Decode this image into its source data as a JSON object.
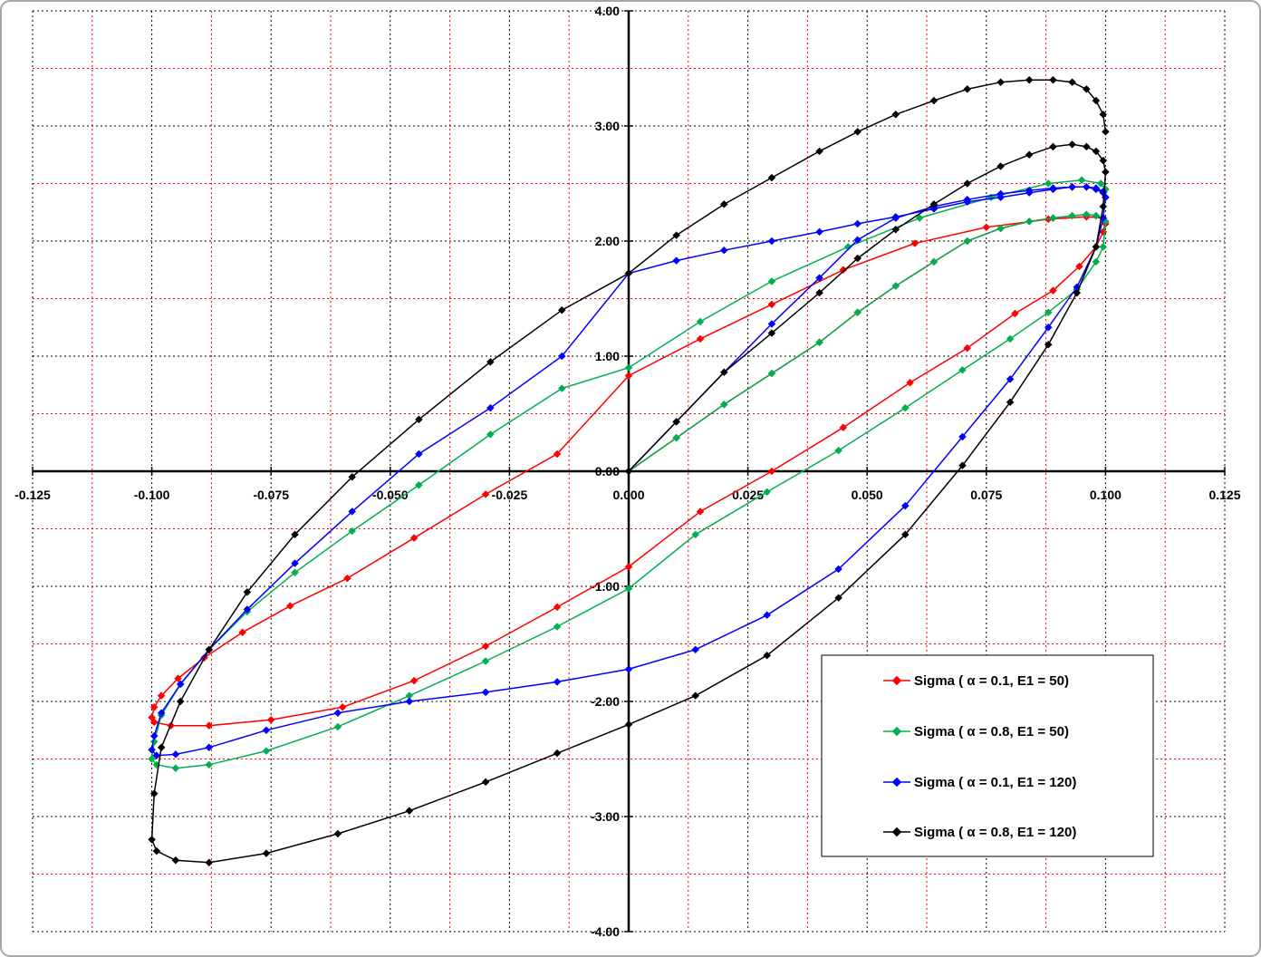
{
  "chart_data": {
    "type": "scatter",
    "title": "",
    "xlabel": "",
    "ylabel": "",
    "xlim": [
      -0.125,
      0.125
    ],
    "ylim": [
      -4.0,
      4.0
    ],
    "x_ticks": [
      -0.125,
      -0.1,
      -0.075,
      -0.05,
      -0.025,
      0.0,
      0.025,
      0.05,
      0.075,
      0.1,
      0.125
    ],
    "x_tick_labels": [
      "-0.125",
      "-0.100",
      "-0.075",
      "-0.050",
      "-0.025",
      "0.000",
      "0.025",
      "0.050",
      "0.075",
      "0.100",
      "0.125"
    ],
    "y_ticks": [
      -4,
      -3,
      -2,
      -1,
      0,
      1,
      2,
      3,
      4
    ],
    "y_tick_labels": [
      "-4.00",
      "-3.00",
      "-2.00",
      "-1.00",
      "0.00",
      "1.00",
      "2.00",
      "3.00",
      "4.00"
    ],
    "major_grid": "black dotted",
    "minor_grid": "red dotted",
    "legend_position": "bottom-right",
    "series": [
      {
        "name": "Sigma ( α = 0.1, E1 = 50)",
        "color": "#ff0000",
        "x": [
          0,
          0.01,
          0.02,
          0.03,
          0.04,
          0.048,
          0.056,
          0.064,
          0.071,
          0.078,
          0.084,
          0.089,
          0.093,
          0.096,
          0.098,
          0.0995,
          0.1,
          0.0995,
          0.098,
          0.0945,
          0.089,
          0.081,
          0.071,
          0.059,
          0.045,
          0.03,
          0.015,
          0,
          -0.015,
          -0.03,
          -0.045,
          -0.06,
          -0.075,
          -0.088,
          -0.096,
          -0.0995,
          -0.1,
          -0.0995,
          -0.098,
          -0.0945,
          -0.089,
          -0.081,
          -0.071,
          -0.059,
          -0.045,
          -0.03,
          -0.015,
          0,
          0.015,
          0.03,
          0.045,
          0.06,
          0.075,
          0.088,
          0.096,
          0.0995,
          0.1
        ],
        "y": [
          0,
          0.29,
          0.58,
          0.85,
          1.12,
          1.38,
          1.61,
          1.82,
          2.0,
          2.11,
          2.17,
          2.2,
          2.22,
          2.23,
          2.22,
          2.2,
          2.17,
          2.08,
          1.95,
          1.78,
          1.57,
          1.37,
          1.07,
          0.77,
          0.38,
          0.0,
          -0.35,
          -0.83,
          -1.18,
          -1.52,
          -1.82,
          -2.05,
          -2.16,
          -2.21,
          -2.21,
          -2.18,
          -2.14,
          -2.05,
          -1.95,
          -1.8,
          -1.62,
          -1.4,
          -1.17,
          -0.93,
          -0.58,
          -0.2,
          0.15,
          0.83,
          1.15,
          1.45,
          1.75,
          1.98,
          2.12,
          2.19,
          2.21,
          2.2,
          2.15
        ]
      },
      {
        "name": "Sigma ( α = 0.8, E1 = 50)",
        "color": "#00b050",
        "x": [
          0,
          0.01,
          0.02,
          0.03,
          0.04,
          0.048,
          0.056,
          0.064,
          0.071,
          0.078,
          0.084,
          0.089,
          0.093,
          0.096,
          0.098,
          0.0995,
          0.1,
          0.0995,
          0.098,
          0.094,
          0.088,
          0.08,
          0.07,
          0.058,
          0.044,
          0.029,
          0.014,
          0,
          -0.015,
          -0.03,
          -0.046,
          -0.061,
          -0.076,
          -0.088,
          -0.095,
          -0.099,
          -0.1,
          -0.0995,
          -0.098,
          -0.094,
          -0.088,
          -0.08,
          -0.07,
          -0.058,
          -0.044,
          -0.029,
          -0.014,
          0,
          0.015,
          0.03,
          0.046,
          0.061,
          0.076,
          0.088,
          0.095,
          0.099,
          0.1
        ],
        "y": [
          0,
          0.29,
          0.58,
          0.85,
          1.12,
          1.38,
          1.61,
          1.82,
          2.0,
          2.11,
          2.17,
          2.2,
          2.22,
          2.23,
          2.22,
          2.2,
          2.17,
          1.95,
          1.82,
          1.58,
          1.38,
          1.15,
          0.88,
          0.55,
          0.18,
          -0.18,
          -0.55,
          -1.02,
          -1.35,
          -1.65,
          -1.95,
          -2.22,
          -2.43,
          -2.55,
          -2.58,
          -2.55,
          -2.5,
          -2.35,
          -2.12,
          -1.85,
          -1.55,
          -1.22,
          -0.88,
          -0.52,
          -0.12,
          0.32,
          0.72,
          0.9,
          1.3,
          1.65,
          1.95,
          2.2,
          2.38,
          2.5,
          2.53,
          2.5,
          2.45
        ]
      },
      {
        "name": "Sigma ( α = 0.1, E1 = 120)",
        "color": "#0000ff",
        "x": [
          0,
          0.01,
          0.02,
          0.03,
          0.04,
          0.048,
          0.056,
          0.064,
          0.071,
          0.078,
          0.084,
          0.089,
          0.093,
          0.096,
          0.098,
          0.0995,
          0.1,
          0.0995,
          0.098,
          0.094,
          0.088,
          0.08,
          0.07,
          0.058,
          0.044,
          0.029,
          0.014,
          0,
          -0.015,
          -0.03,
          -0.046,
          -0.061,
          -0.076,
          -0.088,
          -0.095,
          -0.099,
          -0.1,
          -0.0995,
          -0.098,
          -0.094,
          -0.088,
          -0.08,
          -0.07,
          -0.058,
          -0.044,
          -0.029,
          -0.014,
          0,
          0.01,
          0.02,
          0.03,
          0.04,
          0.048,
          0.056,
          0.064,
          0.071,
          0.078,
          0.084,
          0.089,
          0.093,
          0.096,
          0.098,
          0.0995,
          0.1
        ],
        "y": [
          0,
          0.43,
          0.86,
          1.28,
          1.68,
          2.01,
          2.2,
          2.3,
          2.36,
          2.41,
          2.44,
          2.46,
          2.47,
          2.47,
          2.46,
          2.43,
          2.38,
          2.2,
          1.95,
          1.6,
          1.25,
          0.8,
          0.3,
          -0.3,
          -0.85,
          -1.25,
          -1.55,
          -1.72,
          -1.83,
          -1.92,
          -2.0,
          -2.1,
          -2.25,
          -2.4,
          -2.46,
          -2.47,
          -2.42,
          -2.3,
          -2.1,
          -1.85,
          -1.55,
          -1.2,
          -0.8,
          -0.35,
          0.15,
          0.55,
          1.0,
          1.72,
          1.83,
          1.92,
          2.0,
          2.08,
          2.15,
          2.21,
          2.28,
          2.34,
          2.38,
          2.42,
          2.45,
          2.47,
          2.47,
          2.45,
          2.42,
          2.38
        ]
      },
      {
        "name": "Sigma ( α = 0.8, E1 = 120)",
        "color": "#000000",
        "x": [
          0,
          0.01,
          0.02,
          0.03,
          0.04,
          0.048,
          0.056,
          0.064,
          0.071,
          0.078,
          0.084,
          0.089,
          0.093,
          0.096,
          0.098,
          0.0995,
          0.1,
          0.0995,
          0.098,
          0.094,
          0.088,
          0.08,
          0.07,
          0.058,
          0.044,
          0.029,
          0.014,
          0,
          -0.015,
          -0.03,
          -0.046,
          -0.061,
          -0.076,
          -0.088,
          -0.095,
          -0.099,
          -0.1,
          -0.0995,
          -0.098,
          -0.094,
          -0.088,
          -0.08,
          -0.07,
          -0.058,
          -0.044,
          -0.029,
          -0.014,
          0,
          0.01,
          0.02,
          0.03,
          0.04,
          0.048,
          0.056,
          0.064,
          0.071,
          0.078,
          0.084,
          0.089,
          0.093,
          0.096,
          0.098,
          0.0995,
          0.1
        ],
        "y": [
          0,
          0.43,
          0.86,
          1.2,
          1.55,
          1.85,
          2.1,
          2.32,
          2.5,
          2.65,
          2.75,
          2.82,
          2.84,
          2.82,
          2.78,
          2.7,
          2.6,
          2.3,
          1.95,
          1.55,
          1.1,
          0.6,
          0.05,
          -0.55,
          -1.1,
          -1.6,
          -1.95,
          -2.2,
          -2.45,
          -2.7,
          -2.95,
          -3.15,
          -3.32,
          -3.4,
          -3.38,
          -3.3,
          -3.2,
          -2.8,
          -2.4,
          -2.0,
          -1.55,
          -1.05,
          -0.55,
          -0.05,
          0.45,
          0.95,
          1.4,
          1.72,
          2.05,
          2.32,
          2.55,
          2.78,
          2.95,
          3.1,
          3.22,
          3.32,
          3.38,
          3.4,
          3.4,
          3.38,
          3.32,
          3.22,
          3.1,
          2.95
        ]
      }
    ]
  }
}
